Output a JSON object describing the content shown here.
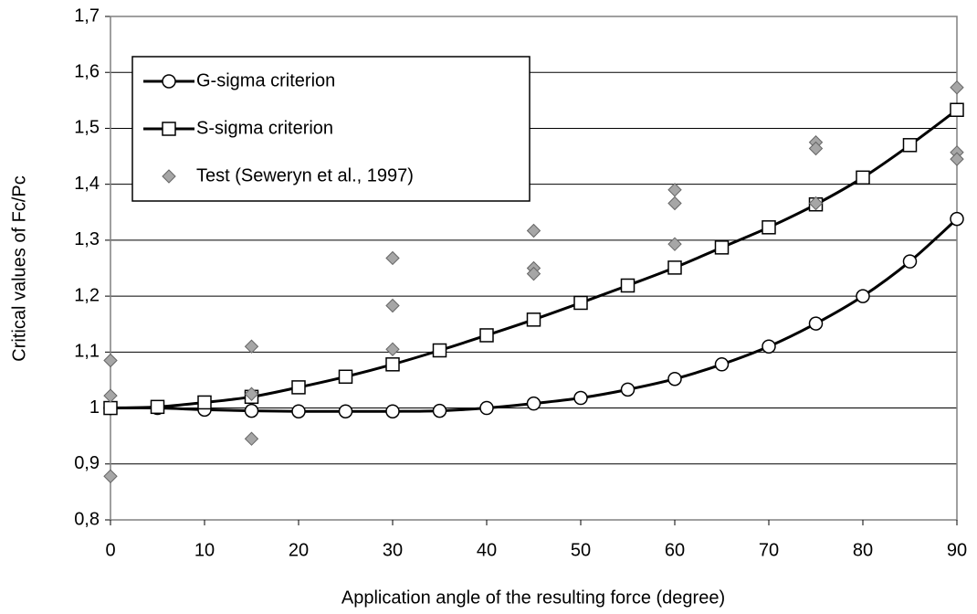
{
  "chart_data": {
    "type": "line",
    "xlabel": "Application angle of the resulting force (degree)",
    "ylabel": "Critical values of Fc/Pc",
    "xlim": [
      0,
      90
    ],
    "xticks": [
      0,
      10,
      20,
      30,
      40,
      50,
      60,
      70,
      80,
      90
    ],
    "ylim": [
      0.8,
      1.7
    ],
    "yticks": [
      {
        "value": 0.8,
        "label": "0,8"
      },
      {
        "value": 0.9,
        "label": "0,9"
      },
      1,
      {
        "value": 1.1,
        "label": "1,1"
      },
      {
        "value": 1.2,
        "label": "1,2"
      },
      {
        "value": 1.3,
        "label": "1,3"
      },
      {
        "value": 1.4,
        "label": "1,4"
      },
      {
        "value": 1.5,
        "label": "1,5"
      },
      {
        "value": 1.6,
        "label": "1,6"
      },
      {
        "value": 1.7,
        "label": "1,7"
      }
    ],
    "grid": true,
    "legend": "upper left",
    "series": [
      {
        "name": "G-sigma criterion",
        "color": "#000000",
        "marker": "circle",
        "line": true,
        "x": [
          0,
          5,
          10,
          15,
          20,
          25,
          30,
          35,
          40,
          45,
          50,
          55,
          60,
          65,
          70,
          75,
          80,
          85,
          90
        ],
        "values": [
          1.0,
          1.0,
          0.997,
          0.995,
          0.994,
          0.994,
          0.994,
          0.995,
          1.0,
          1.008,
          1.018,
          1.033,
          1.052,
          1.078,
          1.11,
          1.151,
          1.2,
          1.262,
          1.338
        ]
      },
      {
        "name": "S-sigma criterion",
        "color": "#000000",
        "marker": "square",
        "line": true,
        "x": [
          0,
          5,
          10,
          15,
          20,
          25,
          30,
          35,
          40,
          45,
          50,
          55,
          60,
          65,
          70,
          75,
          80,
          85,
          90
        ],
        "values": [
          1.0,
          1.002,
          1.01,
          1.02,
          1.037,
          1.056,
          1.078,
          1.103,
          1.13,
          1.158,
          1.188,
          1.219,
          1.251,
          1.287,
          1.323,
          1.364,
          1.412,
          1.47,
          1.533
        ]
      },
      {
        "name": "Test (Seweryn et al., 1997)",
        "color": "#a6a6a6",
        "marker": "diamond",
        "line": false,
        "x": [
          0,
          0,
          0,
          15,
          15,
          15,
          30,
          30,
          30,
          45,
          45,
          45,
          60,
          60,
          60,
          75,
          75,
          75,
          90,
          90,
          90
        ],
        "values": [
          1.085,
          1.022,
          0.878,
          1.11,
          1.025,
          0.945,
          1.268,
          1.183,
          1.105,
          1.317,
          1.25,
          1.24,
          1.39,
          1.366,
          1.293,
          1.475,
          1.464,
          1.366,
          1.573,
          1.457,
          1.445
        ]
      }
    ]
  }
}
